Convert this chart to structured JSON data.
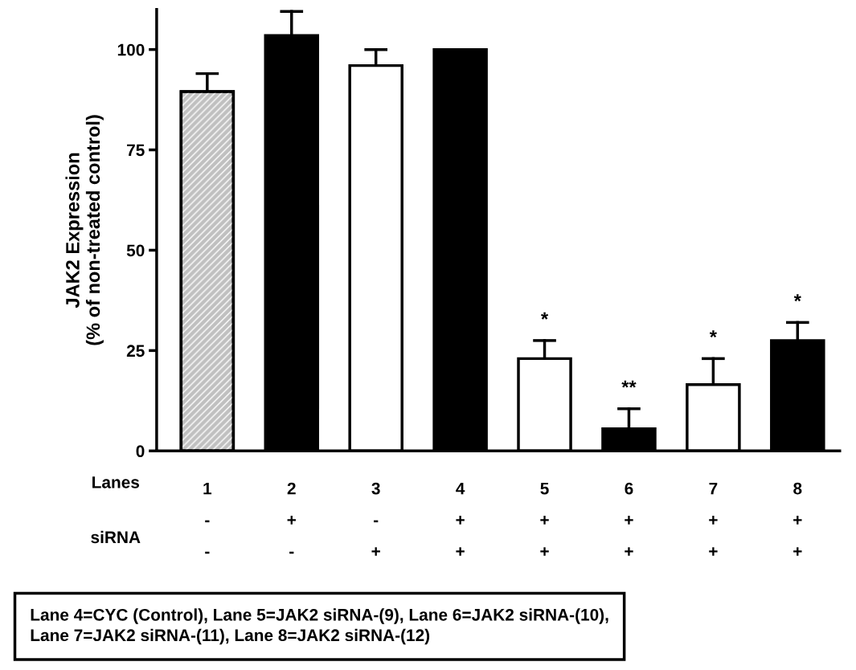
{
  "chart_data": {
    "type": "bar",
    "ylabel": "JAK2 Expression\n(% of non-treated control)",
    "categories": [
      "1\n-\n-",
      "2\n+\n-",
      "3\n-\n+",
      "4\n+\n+",
      "5\n+\n+",
      "6\n+\n+",
      "7\n+\n+",
      "8\n+\n+"
    ],
    "values": [
      89.5,
      103.5,
      96,
      100,
      23,
      5.5,
      16.5,
      27.5
    ],
    "errors": [
      [
        89.5,
        94
      ],
      [
        103.5,
        109.5
      ],
      [
        96,
        100
      ],
      null,
      [
        23,
        27.5
      ],
      [
        5.5,
        10.5
      ],
      [
        16.5,
        23
      ],
      [
        27.5,
        32
      ]
    ],
    "colors": [
      "#c0c0c0",
      "#000000",
      "#ffffff",
      "#000000",
      "#ffffff",
      "#000000",
      "#ffffff",
      "#000000"
    ],
    "ylim": [
      0,
      110
    ],
    "yticks": [
      0,
      25,
      50,
      75,
      100
    ],
    "grid": false,
    "legend": false,
    "value_labels": [
      null,
      null,
      null,
      null,
      "*",
      "**",
      "*",
      "*"
    ],
    "annotations": [
      "Lanes",
      "siRNA",
      "Lane 4=CYC (Control), Lane 5=JAK2 siRNA-(9), Lane 6=JAK2 siRNA-(10),\nLane 7=JAK2 siRNA-(11), Lane 8=JAK2 siRNA-(12)"
    ]
  }
}
